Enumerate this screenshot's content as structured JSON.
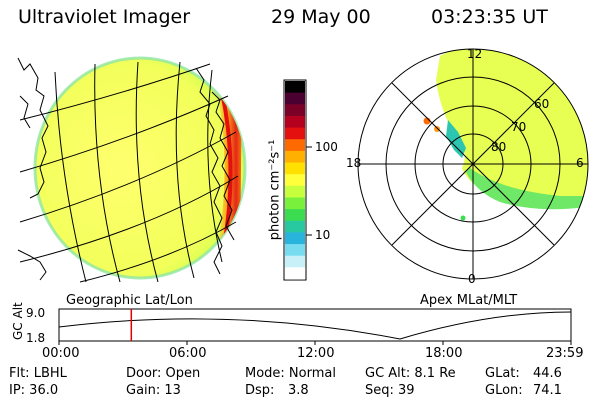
{
  "header": {
    "instrument": "Ultraviolet Imager",
    "date": "29 May 00",
    "time": "03:23:35 UT"
  },
  "colorbar": {
    "unit_label": "photon cm⁻²s⁻¹",
    "tick_high": "100",
    "tick_low": "10",
    "colors": [
      "#000000",
      "#4a0030",
      "#7a0028",
      "#b4001e",
      "#e41010",
      "#ff6a00",
      "#ffb000",
      "#ffe000",
      "#ffff3c",
      "#c8ff3c",
      "#78f03c",
      "#3cdc50",
      "#28c8a0",
      "#28b4dc",
      "#78dcf0",
      "#c8f0f8",
      "#ffffff"
    ]
  },
  "left_panel": {
    "label": "Geographic Lat/Lon"
  },
  "right_panel": {
    "label": "Apex MLat/MLT",
    "mlt_labels": {
      "top": "12",
      "right": "6",
      "bottom": "0",
      "left": "18"
    },
    "lat_labels": [
      "60",
      "70",
      "80"
    ]
  },
  "timeline": {
    "axis_label": "GC Alt",
    "y_high": "9.0",
    "y_low": "1.8",
    "ticks": [
      "00:00",
      "06:00",
      "12:00",
      "18:00",
      "23:59"
    ],
    "current_time_hours": 3.39
  },
  "status": {
    "flt": "Flt: LBHL",
    "ip": "IP: 36.0",
    "door": "Door: Open",
    "gain": "Gain: 13",
    "mode": "Mode: Normal",
    "dsp_label": "Dsp:",
    "dsp_value": "3.8",
    "gc_alt": "GC Alt: 8.1 Re",
    "seq": "Seq: 39",
    "glat": "GLat:",
    "glat_value": "44.6",
    "glon": "GLon:",
    "glon_value": "74.1"
  }
}
